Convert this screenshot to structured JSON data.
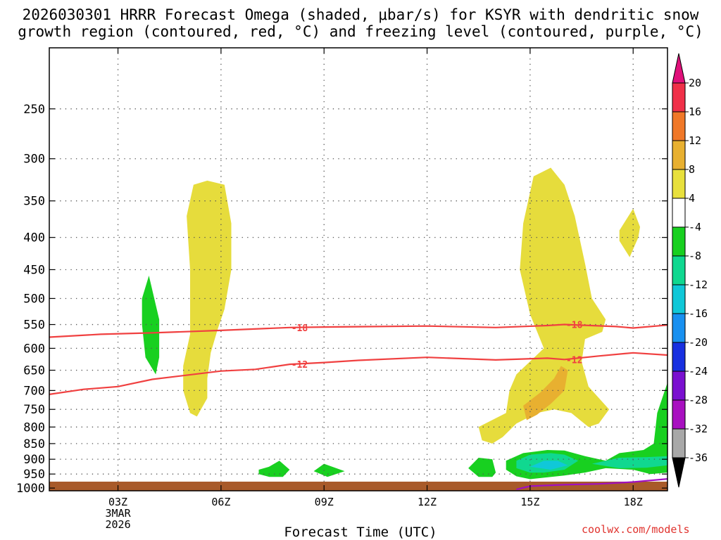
{
  "chart_data": {
    "type": "heatmap",
    "title_line1": "2026030301 HRRR Forecast Omega (shaded, μbar/s) for KSYR with dendritic snow",
    "title_line2": "growth region (contoured, red, °C) and freezing level (contoured, purple, °C)",
    "xlabel": "Forecast Time (UTC)",
    "ylabel": "",
    "credit": "coolwx.com/models",
    "date_label": [
      "3MAR",
      "2026"
    ],
    "x_ticks": [
      {
        "hour": 3,
        "label": "03Z"
      },
      {
        "hour": 6,
        "label": "06Z"
      },
      {
        "hour": 9,
        "label": "09Z"
      },
      {
        "hour": 12,
        "label": "12Z"
      },
      {
        "hour": 15,
        "label": "15Z"
      },
      {
        "hour": 18,
        "label": "18Z"
      }
    ],
    "xlim": [
      1,
      19
    ],
    "y_ticks": [
      250,
      300,
      350,
      400,
      450,
      500,
      550,
      600,
      650,
      700,
      750,
      800,
      850,
      900,
      950,
      1000
    ],
    "ylim": [
      1010,
      200
    ],
    "y_scale": "log-pressure",
    "grid": true,
    "colorbar": {
      "labels": [
        "20",
        "16",
        "12",
        "8",
        "4",
        "-4",
        "-8",
        "-12",
        "-16",
        "-20",
        "-24",
        "-28",
        "-32",
        "-36"
      ],
      "colors": [
        "#f03048",
        "#f07828",
        "#e8b030",
        "#e8e03c",
        "#ffffff",
        "#18d020",
        "#10d890",
        "#10c8d8",
        "#1890f0",
        "#1830e0",
        "#7a10d0",
        "#a810c0",
        "#a8a8a8"
      ],
      "top_arrow_color": "#e0107a",
      "bottom_arrow_color": "#000000"
    },
    "contours": [
      {
        "label": "-18",
        "color": "#f04040",
        "points": [
          [
            1.0,
            576
          ],
          [
            2.5,
            570
          ],
          [
            4.0,
            567
          ],
          [
            6.0,
            562
          ],
          [
            8.0,
            556
          ],
          [
            9.0,
            555
          ],
          [
            12.0,
            553
          ],
          [
            14.0,
            556
          ],
          [
            15.5,
            552
          ],
          [
            16.0,
            550
          ],
          [
            17.5,
            554
          ],
          [
            18.0,
            557
          ],
          [
            19.0,
            551
          ]
        ]
      },
      {
        "label": "-12",
        "color": "#f04040",
        "points": [
          [
            1.0,
            710
          ],
          [
            2.0,
            697
          ],
          [
            3.0,
            690
          ],
          [
            4.0,
            672
          ],
          [
            6.0,
            652
          ],
          [
            7.0,
            648
          ],
          [
            8.0,
            636
          ],
          [
            9.0,
            632
          ],
          [
            10.0,
            627
          ],
          [
            12.0,
            620
          ],
          [
            14.0,
            626
          ],
          [
            15.5,
            622
          ],
          [
            16.0,
            625
          ],
          [
            17.0,
            617
          ],
          [
            18.0,
            610
          ],
          [
            19.0,
            615
          ]
        ]
      },
      {
        "label": "",
        "color": "#a010c0",
        "points": [
          [
            14.6,
            1005
          ],
          [
            15.0,
            993
          ],
          [
            16.0,
            988
          ],
          [
            17.0,
            985
          ],
          [
            18.0,
            978
          ],
          [
            19.0,
            967
          ]
        ]
      }
    ],
    "filled_regions": [
      {
        "level": "4 to 8",
        "color": "#e6dc3c",
        "points": [
          [
            5.1,
            760
          ],
          [
            4.9,
            700
          ],
          [
            4.9,
            640
          ],
          [
            5.1,
            570
          ],
          [
            5.1,
            450
          ],
          [
            5.0,
            370
          ],
          [
            5.2,
            330
          ],
          [
            5.6,
            325
          ],
          [
            6.1,
            330
          ],
          [
            6.3,
            380
          ],
          [
            6.3,
            450
          ],
          [
            6.1,
            520
          ],
          [
            5.9,
            560
          ],
          [
            5.7,
            610
          ],
          [
            5.6,
            670
          ],
          [
            5.6,
            720
          ],
          [
            5.3,
            770
          ]
        ]
      },
      {
        "level": "4 to 8",
        "color": "#e6dc3c",
        "points": [
          [
            15.1,
            320
          ],
          [
            14.8,
            380
          ],
          [
            14.7,
            450
          ],
          [
            15.0,
            530
          ],
          [
            15.4,
            600
          ],
          [
            14.6,
            660
          ],
          [
            14.4,
            700
          ],
          [
            14.3,
            760
          ],
          [
            13.5,
            800
          ],
          [
            13.6,
            840
          ],
          [
            13.9,
            850
          ],
          [
            14.2,
            830
          ],
          [
            14.6,
            790
          ],
          [
            15.2,
            760
          ],
          [
            15.7,
            750
          ],
          [
            16.2,
            760
          ],
          [
            16.7,
            800
          ],
          [
            17.0,
            790
          ],
          [
            17.3,
            750
          ],
          [
            16.7,
            690
          ],
          [
            16.5,
            630
          ],
          [
            16.6,
            580
          ],
          [
            17.1,
            565
          ],
          [
            17.2,
            540
          ],
          [
            16.8,
            500
          ],
          [
            16.6,
            440
          ],
          [
            16.3,
            370
          ],
          [
            16.0,
            330
          ],
          [
            15.6,
            310
          ],
          [
            15.2,
            318
          ]
        ]
      },
      {
        "level": "4 to 8",
        "color": "#e6dc3c",
        "points": [
          [
            18.0,
            360
          ],
          [
            17.6,
            390
          ],
          [
            17.6,
            405
          ],
          [
            17.9,
            430
          ],
          [
            18.15,
            400
          ],
          [
            18.2,
            385
          ]
        ]
      },
      {
        "level": "8 to 12",
        "color": "#e8b030",
        "points": [
          [
            14.9,
            780
          ],
          [
            14.8,
            740
          ],
          [
            15.3,
            705
          ],
          [
            15.7,
            670
          ],
          [
            15.9,
            640
          ],
          [
            16.1,
            650
          ],
          [
            16.0,
            700
          ],
          [
            15.6,
            735
          ],
          [
            15.2,
            765
          ]
        ]
      },
      {
        "level": "-4 to -8",
        "color": "#18d020",
        "points": [
          [
            3.7,
            550
          ],
          [
            3.7,
            500
          ],
          [
            3.9,
            460
          ],
          [
            4.2,
            540
          ],
          [
            4.2,
            620
          ],
          [
            4.1,
            660
          ],
          [
            3.8,
            620
          ]
        ]
      },
      {
        "level": "-4 to -8",
        "color": "#18d020",
        "points": [
          [
            7.1,
            935
          ],
          [
            7.4,
            925
          ],
          [
            7.7,
            905
          ],
          [
            8.0,
            935
          ],
          [
            7.8,
            960
          ],
          [
            7.4,
            960
          ],
          [
            7.1,
            950
          ]
        ]
      },
      {
        "level": "-4 to -8",
        "color": "#18d020",
        "points": [
          [
            8.7,
            940
          ],
          [
            9.0,
            915
          ],
          [
            9.6,
            940
          ],
          [
            9.1,
            960
          ]
        ]
      },
      {
        "level": "-4 to -8",
        "color": "#18d020",
        "points": [
          [
            13.2,
            930
          ],
          [
            13.5,
            895
          ],
          [
            13.9,
            900
          ],
          [
            14.0,
            945
          ],
          [
            13.9,
            960
          ],
          [
            13.5,
            960
          ]
        ]
      },
      {
        "level": "-4 to -8",
        "color": "#18d020",
        "points": [
          [
            14.3,
            905
          ],
          [
            14.8,
            880
          ],
          [
            15.5,
            870
          ],
          [
            16.0,
            872
          ],
          [
            16.6,
            890
          ],
          [
            17.2,
            905
          ],
          [
            17.6,
            880
          ],
          [
            18.3,
            870
          ],
          [
            18.6,
            850
          ],
          [
            18.7,
            760
          ],
          [
            19.0,
            680
          ],
          [
            19.0,
            945
          ],
          [
            18.5,
            950
          ],
          [
            18.0,
            935
          ],
          [
            17.2,
            930
          ],
          [
            16.6,
            945
          ],
          [
            16.0,
            955
          ],
          [
            15.0,
            968
          ],
          [
            14.6,
            958
          ],
          [
            14.3,
            935
          ]
        ]
      },
      {
        "level": "-8 to -12",
        "color": "#10d890",
        "points": [
          [
            14.6,
            905
          ],
          [
            15.0,
            885
          ],
          [
            15.6,
            880
          ],
          [
            16.0,
            885
          ],
          [
            16.4,
            905
          ],
          [
            16.0,
            935
          ],
          [
            15.4,
            945
          ],
          [
            15.0,
            945
          ],
          [
            14.6,
            930
          ]
        ]
      },
      {
        "level": "-8 to -12",
        "color": "#10d890",
        "points": [
          [
            16.8,
            915
          ],
          [
            17.6,
            895
          ],
          [
            18.4,
            893
          ],
          [
            19.0,
            890
          ],
          [
            19.0,
            920
          ],
          [
            18.4,
            928
          ],
          [
            17.6,
            930
          ]
        ]
      },
      {
        "level": "-12 to -16",
        "color": "#10c8d8",
        "points": [
          [
            15.0,
            925
          ],
          [
            15.4,
            905
          ],
          [
            15.8,
            905
          ],
          [
            16.1,
            920
          ],
          [
            15.6,
            935
          ]
        ]
      }
    ],
    "ground": {
      "color": "#a85a2a",
      "from_pressure": 1010
    }
  }
}
